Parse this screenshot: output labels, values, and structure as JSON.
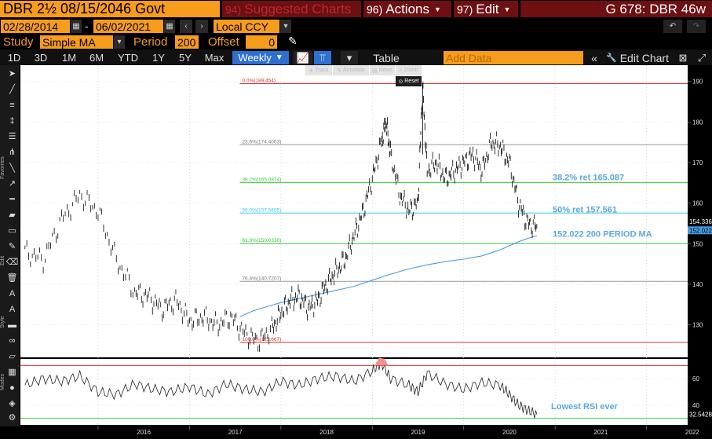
{
  "header": {
    "title": "DBR 2½ 08/15/2046 Govt",
    "suggested": {
      "num": "94)",
      "label": "Suggested Charts"
    },
    "actions": {
      "num": "96)",
      "label": "Actions"
    },
    "edit": {
      "num": "97)",
      "label": "Edit"
    },
    "ticker": "G 678: DBR 46w"
  },
  "dates": {
    "start": "02/28/2014",
    "end": "06/02/2021",
    "currency": "Local CCY"
  },
  "study": {
    "label": "Study",
    "value": "Simple MA",
    "period_label": "Period",
    "period": "200",
    "offset_label": "Offset",
    "offset": "0"
  },
  "ranges": [
    "1D",
    "3D",
    "1M",
    "6M",
    "YTD",
    "1Y",
    "5Y",
    "Max"
  ],
  "frequency": "Weekly",
  "table_label": "Table",
  "add_data_placeholder": "Add Data",
  "edit_chart_label": "Edit Chart",
  "chart_tools": {
    "track": "Track",
    "annotate": "Annotate",
    "news": "News",
    "zoom": "Zoom",
    "reset": "Reset"
  },
  "side_labels": {
    "favorites": "Favorites",
    "edit": "Edit",
    "style": "Style",
    "modes": "Modes"
  },
  "colors": {
    "orange": "#f89c1c",
    "header_red": "#6e0f12",
    "price": "#000000",
    "ma": "#4a9be0",
    "annotation": "#5aa7e0",
    "fib_green": "#33cc33",
    "fib_red": "#dd3333",
    "fib_cyan": "#33ccee",
    "fib_grey": "#999999"
  },
  "chart_data": {
    "type": "line",
    "x_ticks": [
      "2016",
      "2017",
      "2018",
      "2019",
      "2020",
      "2021",
      "2022"
    ],
    "y_ticks": [
      130,
      140,
      150,
      160,
      170,
      180,
      190
    ],
    "ylim": [
      122,
      194
    ],
    "rsi_ticks": [
      40,
      60
    ],
    "rsi_ylim": [
      25,
      75
    ],
    "current_price": "154.336",
    "current_ma": "152.022",
    "current_rsi": "32.5428",
    "fib_levels": [
      {
        "label": "0.0%(189.454)",
        "value": 189.454,
        "color": "fib_red"
      },
      {
        "label": "23.6%(174.4003)",
        "value": 174.4003,
        "color": "fib_grey"
      },
      {
        "label": "38.2%(165.0874)",
        "value": 165.0874,
        "color": "fib_green"
      },
      {
        "label": "50.0%(157.5605)",
        "value": 157.5605,
        "color": "fib_cyan"
      },
      {
        "label": "61.8%(150.0336)",
        "value": 150.0336,
        "color": "fib_green"
      },
      {
        "label": "76.4%(140.7207)",
        "value": 140.7207,
        "color": "fib_grey"
      },
      {
        "label": "100.0%(125.667)",
        "value": 125.667,
        "color": "fib_red"
      }
    ],
    "annotations": [
      {
        "text": "38.2% ret 165.087",
        "value": 166.4
      },
      {
        "text": "50% ret 157.561",
        "value": 158.5
      },
      {
        "text": "152.022 200 PERIOD MA",
        "value": 152.5
      }
    ],
    "rsi_annotation": "Lowest RSI ever",
    "series": [
      {
        "name": "Price",
        "x": [
          2015.2,
          2015.4,
          2015.6,
          2015.8,
          2016.0,
          2016.2,
          2016.4,
          2016.55,
          2016.7,
          2016.85,
          2017.0,
          2017.15,
          2017.3,
          2017.45,
          2017.6,
          2017.75,
          2017.9,
          2018.0,
          2018.1,
          2018.2,
          2018.3,
          2018.4,
          2018.5,
          2018.6,
          2018.7,
          2018.8,
          2018.9,
          2019.0,
          2019.1,
          2019.15,
          2019.2,
          2019.3,
          2019.4,
          2019.5,
          2019.55,
          2019.6,
          2019.7,
          2019.8,
          2019.9,
          2020.0,
          2020.1,
          2020.2,
          2020.3,
          2020.4,
          2020.5,
          2020.6,
          2020.7,
          2020.8
        ],
        "values": [
          148,
          146,
          156,
          162,
          158,
          146,
          138,
          137,
          134,
          136,
          131,
          132,
          130,
          132,
          128,
          126,
          129,
          133,
          136,
          137,
          134,
          136,
          140,
          143,
          146,
          152,
          158,
          166,
          175,
          180,
          172,
          162,
          158,
          160,
          189,
          168,
          170,
          166,
          168,
          170,
          172,
          168,
          175,
          174,
          170,
          160,
          155,
          154.3
        ]
      },
      {
        "name": "200 Period MA",
        "x": [
          2017.55,
          2017.7,
          2017.85,
          2018.0,
          2018.2,
          2018.4,
          2018.6,
          2018.8,
          2019.0,
          2019.2,
          2019.4,
          2019.6,
          2019.8,
          2020.0,
          2020.2,
          2020.4,
          2020.6,
          2020.7,
          2020.8
        ],
        "values": [
          132,
          133.5,
          134.5,
          135.5,
          136.5,
          137.5,
          138.5,
          139.5,
          141,
          142.5,
          143.8,
          144.8,
          145.6,
          146.2,
          147,
          148.5,
          150.5,
          151.3,
          152.0
        ]
      },
      {
        "name": "RSI",
        "x": [
          2015.2,
          2015.4,
          2015.6,
          2015.8,
          2016.0,
          2016.2,
          2016.4,
          2016.6,
          2016.8,
          2017.0,
          2017.2,
          2017.4,
          2017.6,
          2017.8,
          2018.0,
          2018.2,
          2018.4,
          2018.6,
          2018.8,
          2019.0,
          2019.1,
          2019.2,
          2019.4,
          2019.5,
          2019.6,
          2019.8,
          2020.0,
          2020.2,
          2020.4,
          2020.5,
          2020.6,
          2020.7,
          2020.8
        ],
        "values": [
          55,
          60,
          58,
          62,
          50,
          48,
          56,
          52,
          50,
          54,
          48,
          56,
          52,
          50,
          58,
          55,
          60,
          62,
          58,
          66,
          72,
          60,
          55,
          50,
          64,
          56,
          52,
          57,
          55,
          48,
          40,
          36,
          33
        ]
      }
    ],
    "rsi_levels": [
      70,
      30
    ]
  }
}
